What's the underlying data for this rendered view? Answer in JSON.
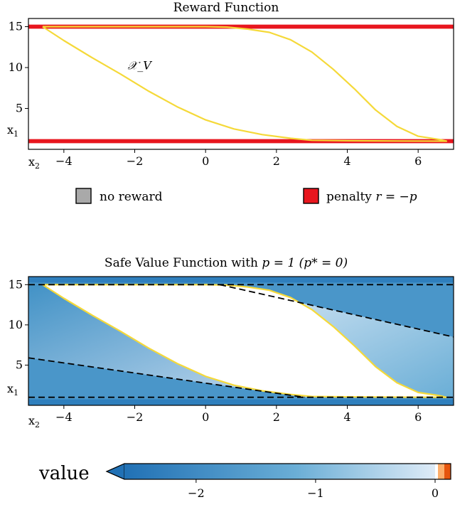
{
  "chart_data": [
    {
      "type": "area",
      "title": "Reward Function",
      "xlabel": "x_2",
      "ylabel": "x_1",
      "xlim": [
        -5,
        7
      ],
      "ylim": [
        0,
        16
      ],
      "x_ticks": [
        "−4",
        "−2",
        "0",
        "2",
        "4",
        "6"
      ],
      "x_tick_values": [
        -4,
        -2,
        0,
        2,
        4,
        6
      ],
      "y_ticks": [
        "15",
        "10",
        "5"
      ],
      "y_tick_values": [
        15,
        10,
        5
      ],
      "region_label": "𝒳_V",
      "region_label_pos": [
        -2.2,
        9.8
      ],
      "region_color": "#f5d939",
      "penalty_bands": [
        {
          "y0": 14.75,
          "y1": 15.25
        },
        {
          "y0": 0.75,
          "y1": 1.25
        }
      ],
      "safe_set_boundary": [
        [
          -4.6,
          15.0
        ],
        [
          -4.0,
          13.3
        ],
        [
          -3.2,
          11.2
        ],
        [
          -2.4,
          9.2
        ],
        [
          -1.6,
          7.1
        ],
        [
          -0.8,
          5.2
        ],
        [
          0.0,
          3.6
        ],
        [
          0.8,
          2.5
        ],
        [
          1.6,
          1.8
        ],
        [
          2.4,
          1.35
        ],
        [
          3.0,
          1.1
        ],
        [
          4.0,
          1.05
        ],
        [
          5.5,
          1.02
        ],
        [
          6.8,
          1.0
        ],
        [
          6.6,
          1.2
        ],
        [
          6.0,
          1.6
        ],
        [
          5.4,
          2.8
        ],
        [
          4.8,
          4.8
        ],
        [
          4.2,
          7.4
        ],
        [
          3.6,
          9.8
        ],
        [
          3.0,
          11.9
        ],
        [
          2.4,
          13.4
        ],
        [
          1.8,
          14.3
        ],
        [
          1.2,
          14.7
        ],
        [
          0.6,
          14.95
        ],
        [
          0.0,
          15.0
        ],
        [
          -2.0,
          15.0
        ],
        [
          -4.6,
          15.0
        ]
      ],
      "legend": [
        {
          "label": "no reward",
          "color": "#a9a9a9"
        },
        {
          "label": "penalty",
          "math": "r = −p",
          "color": "#e8161e"
        }
      ],
      "legend_placement": "below"
    },
    {
      "type": "heatmap",
      "title": "Safe Value Function with",
      "title_math": "p = 1 (p* = 0)",
      "xlabel": "x_2",
      "ylabel": "x_1",
      "xlim": [
        -5,
        7
      ],
      "ylim": [
        0,
        16
      ],
      "x_ticks": [
        "−4",
        "−2",
        "0",
        "2",
        "4",
        "6"
      ],
      "x_tick_values": [
        -4,
        -2,
        0,
        2,
        4,
        6
      ],
      "y_ticks": [
        "15",
        "10",
        "5"
      ],
      "y_tick_values": [
        15,
        10,
        5
      ],
      "dashed_lines": [
        [
          [
            -5,
            15.0
          ],
          [
            7,
            15.0
          ]
        ],
        [
          [
            -5,
            1.0
          ],
          [
            7,
            1.0
          ]
        ],
        [
          [
            -5,
            5.9
          ],
          [
            2.8,
            1.0
          ]
        ],
        [
          [
            0.4,
            15.0
          ],
          [
            7,
            8.5
          ]
        ]
      ],
      "colorbar": {
        "label": "value",
        "range": [
          -2.6,
          0.1
        ],
        "ticks": [
          "−2",
          "−1",
          "0"
        ],
        "tick_values": [
          -2,
          -1,
          0
        ],
        "extend": "min",
        "low_color": "#2171b5",
        "high_color": "#deebf7",
        "positive_colors": [
          "#ffffff",
          "#fdae6b",
          "#e6550d"
        ]
      }
    }
  ]
}
